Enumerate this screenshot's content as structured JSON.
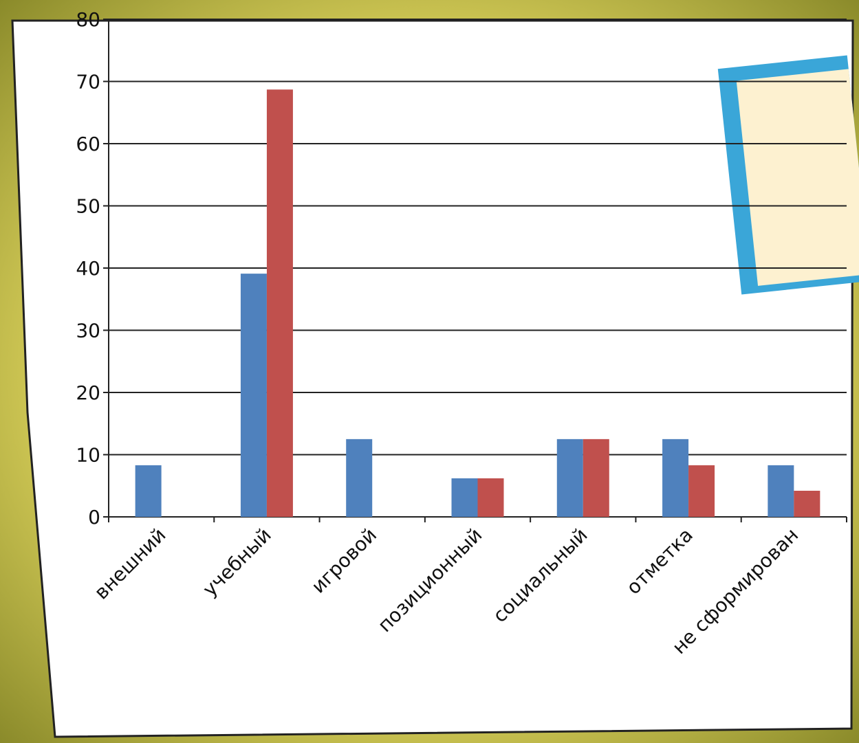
{
  "chart_data": {
    "type": "bar",
    "categories": [
      "внешний",
      "учебный",
      "игровой",
      "позиционный",
      "социальный",
      "отметка",
      "не сформирован"
    ],
    "series": [
      {
        "color": "#4f81bd",
        "values": [
          8.3,
          39.1,
          12.5,
          6.2,
          12.5,
          12.5,
          8.3
        ]
      },
      {
        "color": "#c0504d",
        "values": [
          0,
          68.7,
          0,
          6.2,
          12.5,
          8.3,
          4.2
        ]
      }
    ],
    "ylim": [
      0,
      80
    ],
    "yticks": [
      0,
      10,
      20,
      30,
      40,
      50,
      60,
      70,
      80
    ],
    "grid": true
  }
}
